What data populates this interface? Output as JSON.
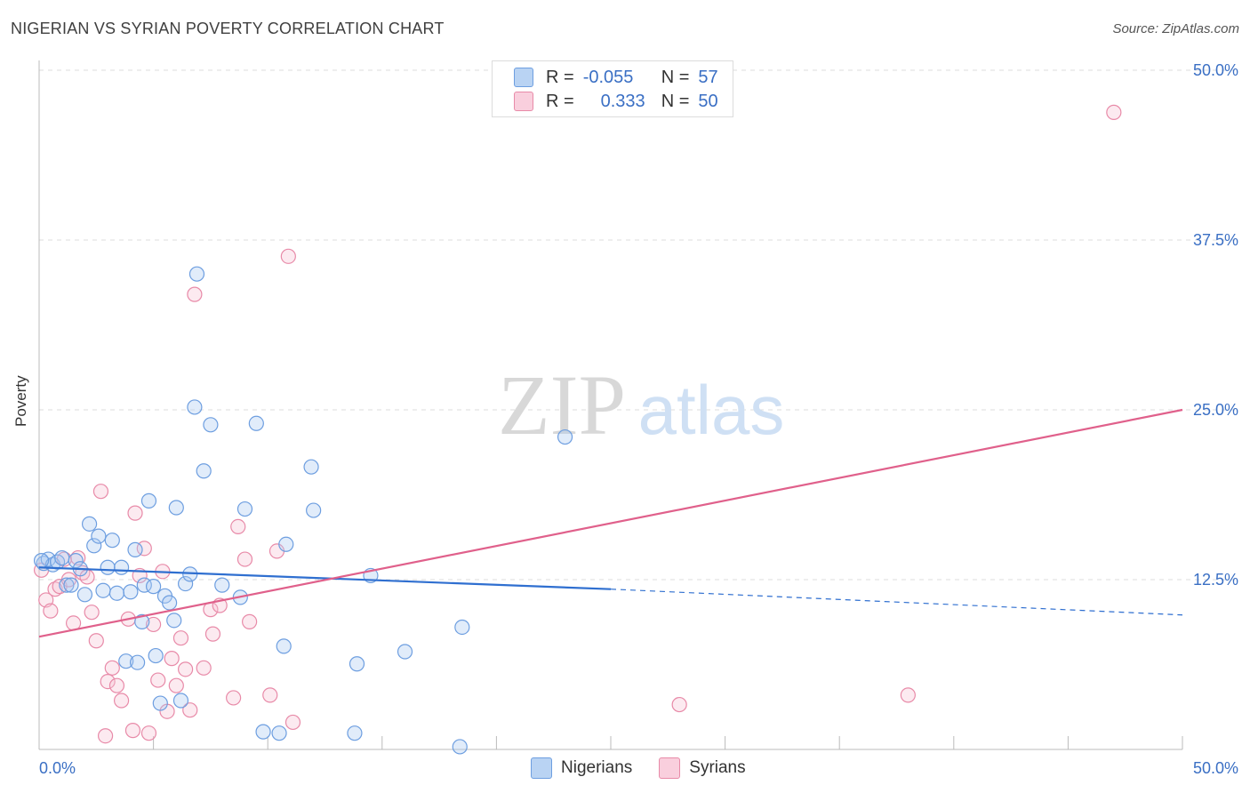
{
  "header": {
    "title": "NIGERIAN VS SYRIAN POVERTY CORRELATION CHART",
    "source": "Source: ZipAtlas.com"
  },
  "watermark": {
    "zip": "ZIP",
    "atlas": "atlas"
  },
  "legend": {
    "rows": [
      {
        "r_label": "R =",
        "r_value": "-0.055",
        "n_label": "N =",
        "n_value": "57",
        "color": "#a9c8f0",
        "border": "#6d9ee0"
      },
      {
        "r_label": "R =",
        "r_value": "0.333",
        "n_label": "N =",
        "n_value": "50",
        "color": "#f6c2d4",
        "border": "#e88aa8"
      }
    ],
    "bottom": [
      {
        "label": "Nigerians",
        "color": "#b9d3f3",
        "border": "#6d9ee0"
      },
      {
        "label": "Syrians",
        "color": "#f9cfdd",
        "border": "#e88aa8"
      }
    ]
  },
  "chart_data": {
    "type": "scatter",
    "title": "NIGERIAN VS SYRIAN POVERTY CORRELATION CHART",
    "xlabel": "",
    "ylabel": "Poverty",
    "xlim": [
      0,
      50
    ],
    "ylim": [
      0,
      50
    ],
    "x_tick_labels": {
      "min": "0.0%",
      "max": "50.0%"
    },
    "y_ticks": [
      {
        "value": 12.5,
        "label": "12.5%"
      },
      {
        "value": 25.0,
        "label": "25.0%"
      },
      {
        "value": 37.5,
        "label": "37.5%"
      },
      {
        "value": 50.0,
        "label": "50.0%"
      }
    ],
    "series": [
      {
        "name": "Nigerians",
        "color": "#6d9ee0",
        "fill": "rgba(169,200,240,0.35)",
        "trend": {
          "x": [
            0,
            25
          ],
          "y": [
            13.4,
            11.8
          ],
          "dashed_to": [
            50,
            9.9
          ],
          "color": "#2f6fd0"
        },
        "points": [
          [
            0.2,
            13.7
          ],
          [
            0.4,
            14.0
          ],
          [
            0.6,
            13.6
          ],
          [
            0.8,
            13.8
          ],
          [
            1.0,
            14.1
          ],
          [
            1.2,
            12.1
          ],
          [
            1.4,
            12.1
          ],
          [
            1.6,
            13.9
          ],
          [
            1.8,
            13.3
          ],
          [
            2.0,
            11.4
          ],
          [
            2.2,
            16.6
          ],
          [
            2.4,
            15.0
          ],
          [
            2.6,
            15.7
          ],
          [
            2.8,
            11.7
          ],
          [
            3.0,
            13.4
          ],
          [
            3.2,
            15.4
          ],
          [
            3.4,
            11.5
          ],
          [
            3.6,
            13.4
          ],
          [
            3.8,
            6.5
          ],
          [
            4.0,
            11.6
          ],
          [
            4.2,
            14.7
          ],
          [
            4.3,
            6.4
          ],
          [
            4.5,
            9.4
          ],
          [
            4.6,
            12.1
          ],
          [
            4.8,
            18.3
          ],
          [
            5.0,
            12.0
          ],
          [
            5.1,
            6.9
          ],
          [
            5.3,
            3.4
          ],
          [
            5.5,
            11.3
          ],
          [
            5.7,
            10.8
          ],
          [
            5.9,
            9.5
          ],
          [
            6.0,
            17.8
          ],
          [
            6.2,
            3.6
          ],
          [
            6.4,
            12.2
          ],
          [
            6.6,
            12.9
          ],
          [
            6.8,
            25.2
          ],
          [
            6.9,
            35.0
          ],
          [
            7.2,
            20.5
          ],
          [
            7.5,
            23.9
          ],
          [
            8.0,
            12.1
          ],
          [
            8.8,
            11.2
          ],
          [
            9.0,
            17.7
          ],
          [
            9.5,
            24.0
          ],
          [
            9.8,
            1.3
          ],
          [
            10.8,
            15.1
          ],
          [
            10.5,
            1.2
          ],
          [
            10.7,
            7.6
          ],
          [
            11.9,
            20.8
          ],
          [
            12.0,
            17.6
          ],
          [
            13.9,
            6.3
          ],
          [
            13.8,
            1.2
          ],
          [
            14.5,
            12.8
          ],
          [
            16.0,
            7.2
          ],
          [
            18.5,
            9.0
          ],
          [
            18.4,
            0.2
          ],
          [
            23.0,
            23.0
          ],
          [
            0.1,
            13.9
          ]
        ]
      },
      {
        "name": "Syrians",
        "color": "#e88aa8",
        "fill": "rgba(246,194,212,0.35)",
        "trend": {
          "x": [
            0,
            50
          ],
          "y": [
            8.3,
            25.0
          ],
          "color": "#e0608b"
        },
        "points": [
          [
            0.1,
            13.2
          ],
          [
            0.3,
            11.0
          ],
          [
            0.5,
            10.2
          ],
          [
            0.7,
            11.8
          ],
          [
            0.9,
            12.0
          ],
          [
            1.1,
            14.0
          ],
          [
            1.3,
            12.5
          ],
          [
            1.5,
            9.3
          ],
          [
            1.7,
            14.1
          ],
          [
            1.9,
            13.0
          ],
          [
            2.1,
            12.7
          ],
          [
            2.3,
            10.1
          ],
          [
            2.5,
            8.0
          ],
          [
            2.7,
            19.0
          ],
          [
            2.9,
            1.0
          ],
          [
            3.0,
            5.0
          ],
          [
            3.2,
            6.0
          ],
          [
            3.4,
            4.7
          ],
          [
            3.6,
            3.6
          ],
          [
            3.9,
            9.6
          ],
          [
            4.1,
            1.4
          ],
          [
            4.2,
            17.4
          ],
          [
            4.4,
            12.8
          ],
          [
            4.6,
            14.8
          ],
          [
            4.8,
            1.2
          ],
          [
            5.0,
            9.2
          ],
          [
            5.2,
            5.1
          ],
          [
            5.4,
            13.1
          ],
          [
            5.6,
            2.8
          ],
          [
            5.8,
            6.7
          ],
          [
            6.0,
            4.7
          ],
          [
            6.2,
            8.2
          ],
          [
            6.4,
            5.9
          ],
          [
            6.6,
            2.9
          ],
          [
            7.2,
            6.0
          ],
          [
            7.5,
            10.3
          ],
          [
            7.6,
            8.5
          ],
          [
            7.9,
            10.6
          ],
          [
            8.5,
            3.8
          ],
          [
            8.7,
            16.4
          ],
          [
            9.0,
            14.0
          ],
          [
            9.2,
            9.4
          ],
          [
            10.1,
            4.0
          ],
          [
            10.4,
            14.6
          ],
          [
            10.9,
            36.3
          ],
          [
            11.1,
            2.0
          ],
          [
            6.8,
            33.5
          ],
          [
            28.0,
            3.3
          ],
          [
            38.0,
            4.0
          ],
          [
            47.0,
            46.9
          ]
        ]
      }
    ]
  }
}
